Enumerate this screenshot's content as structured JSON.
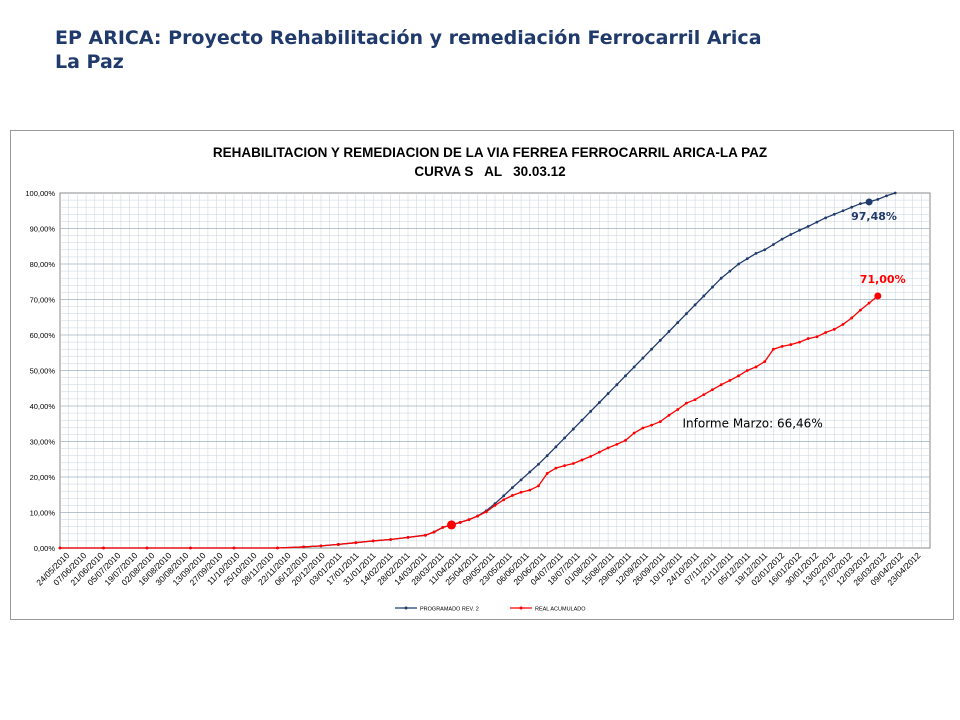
{
  "slide": {
    "title_line1": "EP ARICA: Proyecto Rehabilitación y remediación Ferrocarril Arica",
    "title_line2": "La Paz"
  },
  "colors": {
    "programado": "#1F3A6B",
    "real": "#FF0000",
    "title": "#1F3A6B",
    "grid": "#C9D3DD"
  },
  "chart_data": {
    "type": "line",
    "title": "REHABILITACION Y REMEDIACION DE LA VIA FERREA FERROCARRIL ARICA-LA PAZ",
    "subtitle": "CURVA S   AL   30.03.12",
    "xlabel": "",
    "ylabel": "",
    "ylim": [
      0,
      100
    ],
    "yticks": [
      "0,00%",
      "10,00%",
      "20,00%",
      "30,00%",
      "40,00%",
      "50,00%",
      "60,00%",
      "70,00%",
      "80,00%",
      "90,00%",
      "100,00%"
    ],
    "grid": true,
    "legend_position": "bottom",
    "x_tick_labels": [
      "24/05/2010",
      "07/06/2010",
      "21/06/2010",
      "05/07/2010",
      "19/07/2010",
      "02/08/2010",
      "16/08/2010",
      "30/08/2010",
      "13/09/2010",
      "27/09/2010",
      "11/10/2010",
      "25/10/2010",
      "08/11/2010",
      "22/11/2010",
      "06/12/2010",
      "20/12/2010",
      "03/01/2011",
      "17/01/2011",
      "31/01/2011",
      "14/02/2011",
      "28/02/2011",
      "14/03/2011",
      "28/03/2011",
      "11/04/2011",
      "25/04/2011",
      "09/05/2011",
      "23/05/2011",
      "06/06/2011",
      "20/06/2011",
      "04/07/2011",
      "18/07/2011",
      "01/08/2011",
      "15/08/2011",
      "29/08/2011",
      "12/09/2011",
      "26/09/2011",
      "10/10/2011",
      "24/10/2011",
      "07/11/2011",
      "21/11/2011",
      "05/12/2011",
      "19/12/2011",
      "02/01/2012",
      "16/01/2012",
      "30/01/2012",
      "13/02/2012",
      "27/02/2012",
      "12/03/2012",
      "26/03/2012",
      "09/04/2012",
      "23/04/2012"
    ],
    "series": [
      {
        "name": "PROGRAMADO REV. 2",
        "color": "#1F3A6B",
        "points": [
          [
            0,
            0
          ],
          [
            5,
            0
          ],
          [
            10,
            0
          ],
          [
            15,
            0
          ],
          [
            20,
            0
          ],
          [
            25,
            0
          ],
          [
            28,
            0.3
          ],
          [
            30,
            0.6
          ],
          [
            32,
            1.0
          ],
          [
            34,
            1.5
          ],
          [
            36,
            2.0
          ],
          [
            38,
            2.4
          ],
          [
            40,
            3.0
          ],
          [
            42,
            3.6
          ],
          [
            43,
            4.5
          ],
          [
            44,
            5.8
          ],
          [
            45,
            6.5
          ],
          [
            46,
            7.2
          ],
          [
            47,
            8.0
          ],
          [
            48,
            9.0
          ],
          [
            49,
            10.5
          ],
          [
            50,
            12.5
          ],
          [
            51,
            14.7
          ],
          [
            52,
            17.0
          ],
          [
            53,
            19.2
          ],
          [
            54,
            21.4
          ],
          [
            55,
            23.6
          ],
          [
            56,
            26.0
          ],
          [
            57,
            28.5
          ],
          [
            58,
            31.0
          ],
          [
            59,
            33.5
          ],
          [
            60,
            36.0
          ],
          [
            61,
            38.5
          ],
          [
            62,
            41.0
          ],
          [
            63,
            43.5
          ],
          [
            64,
            46.0
          ],
          [
            65,
            48.5
          ],
          [
            66,
            51.0
          ],
          [
            67,
            53.5
          ],
          [
            68,
            56.0
          ],
          [
            69,
            58.5
          ],
          [
            70,
            61.0
          ],
          [
            71,
            63.5
          ],
          [
            72,
            66.0
          ],
          [
            73,
            68.5
          ],
          [
            74,
            71.0
          ],
          [
            75,
            73.5
          ],
          [
            76,
            76.0
          ],
          [
            77,
            78.0
          ],
          [
            78,
            80.0
          ],
          [
            79,
            81.5
          ],
          [
            80,
            83.0
          ],
          [
            81,
            84.0
          ],
          [
            82,
            85.5
          ],
          [
            83,
            87.0
          ],
          [
            84,
            88.3
          ],
          [
            85,
            89.5
          ],
          [
            86,
            90.6
          ],
          [
            87,
            91.8
          ],
          [
            88,
            93.0
          ],
          [
            89,
            94.0
          ],
          [
            90,
            95.0
          ],
          [
            91,
            96.0
          ],
          [
            92,
            97.0
          ],
          [
            93,
            97.48
          ],
          [
            94,
            98.2
          ],
          [
            95,
            99.2
          ],
          [
            96,
            100
          ]
        ]
      },
      {
        "name": "REAL ACUMULADO",
        "color": "#FF0000",
        "points": [
          [
            0,
            0
          ],
          [
            5,
            0
          ],
          [
            10,
            0
          ],
          [
            15,
            0
          ],
          [
            20,
            0
          ],
          [
            25,
            0
          ],
          [
            28,
            0.3
          ],
          [
            30,
            0.6
          ],
          [
            32,
            1.0
          ],
          [
            34,
            1.5
          ],
          [
            36,
            2.0
          ],
          [
            38,
            2.4
          ],
          [
            40,
            3.0
          ],
          [
            42,
            3.6
          ],
          [
            43,
            4.5
          ],
          [
            44,
            5.8
          ],
          [
            45,
            6.5
          ],
          [
            46,
            7.2
          ],
          [
            47,
            8.0
          ],
          [
            48,
            9.0
          ],
          [
            49,
            10.2
          ],
          [
            50,
            12.0
          ],
          [
            51,
            13.6
          ],
          [
            52,
            14.8
          ],
          [
            53,
            15.7
          ],
          [
            54,
            16.3
          ],
          [
            55,
            17.5
          ],
          [
            56,
            21.0
          ],
          [
            57,
            22.5
          ],
          [
            58,
            23.2
          ],
          [
            59,
            23.8
          ],
          [
            60,
            24.8
          ],
          [
            61,
            25.8
          ],
          [
            62,
            27.0
          ],
          [
            63,
            28.2
          ],
          [
            64,
            29.2
          ],
          [
            65,
            30.3
          ],
          [
            66,
            32.4
          ],
          [
            67,
            33.8
          ],
          [
            68,
            34.6
          ],
          [
            69,
            35.6
          ],
          [
            70,
            37.4
          ],
          [
            71,
            39.0
          ],
          [
            72,
            40.8
          ],
          [
            73,
            41.8
          ],
          [
            74,
            43.2
          ],
          [
            75,
            44.6
          ],
          [
            76,
            46.0
          ],
          [
            77,
            47.2
          ],
          [
            78,
            48.5
          ],
          [
            79,
            50.0
          ],
          [
            80,
            51.0
          ],
          [
            81,
            52.5
          ],
          [
            82,
            56.0
          ],
          [
            83,
            56.8
          ],
          [
            84,
            57.3
          ],
          [
            85,
            58.0
          ],
          [
            86,
            59.0
          ],
          [
            87,
            59.5
          ],
          [
            88,
            60.7
          ],
          [
            89,
            61.6
          ],
          [
            90,
            63.0
          ],
          [
            91,
            64.8
          ],
          [
            92,
            67.0
          ],
          [
            93,
            69.0
          ],
          [
            94,
            71.0
          ]
        ]
      }
    ],
    "annotations": [
      {
        "text": "97,48%",
        "x": 93,
        "y": 97.48,
        "color": "#1F3A6B",
        "marker": true
      },
      {
        "text": "71,00%",
        "x": 94,
        "y": 71.0,
        "color": "#FF0000",
        "marker": true
      },
      {
        "text": "Informe Marzo: 66,46%",
        "x": 75,
        "y": 34,
        "color": "#000000",
        "marker": false
      },
      {
        "text": "",
        "x": 45,
        "y": 6.5,
        "color": "#FF0000",
        "marker": true
      }
    ]
  }
}
